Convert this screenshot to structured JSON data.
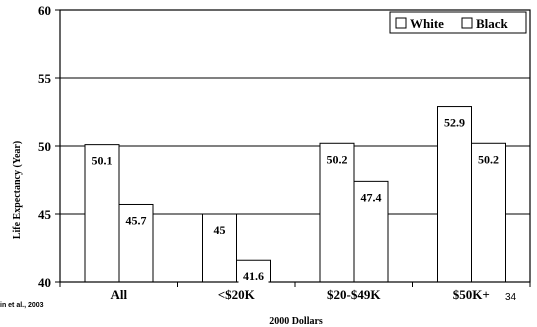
{
  "chart_data": {
    "type": "bar",
    "categories": [
      "All",
      "<$20K",
      "$20-$49K",
      "$50K+"
    ],
    "series": [
      {
        "name": "White",
        "values": [
          50.1,
          45,
          50.2,
          52.9
        ]
      },
      {
        "name": "Black",
        "values": [
          45.7,
          41.6,
          47.4,
          50.2
        ]
      }
    ],
    "data_labels": [
      [
        "50.1",
        "45",
        "50.2",
        "52.9"
      ],
      [
        "45.7",
        "41.6",
        "47.4",
        "50.2"
      ]
    ],
    "xlabel": "2000 Dollars",
    "ylabel": "Life Expectancy (Year)",
    "ylim": [
      40,
      60
    ],
    "yticks": [
      40,
      45,
      50,
      55,
      60
    ],
    "grid": true,
    "legend_position": "top-right",
    "colors": {
      "bar_fill": "#ffffff",
      "bar_stroke": "#000000"
    }
  },
  "footnote": "in et al., 2003",
  "page_number": "34"
}
